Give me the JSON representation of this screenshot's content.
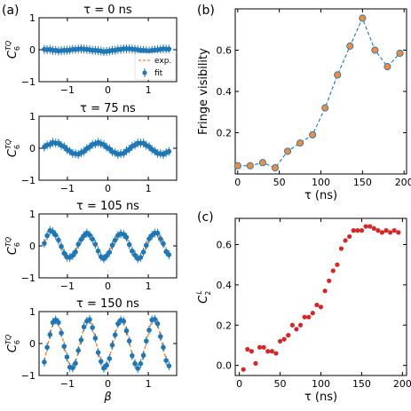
{
  "panel_labels": {
    "a": "(a)",
    "b": "(b)",
    "c": "(c)"
  },
  "colors": {
    "blue": "#1f77b4",
    "orange": "#ff7f0e",
    "orange_fill": "#f08c3a",
    "red": "#d62728"
  },
  "legend": {
    "fit": "exp.",
    "exp": "fit"
  },
  "chart_data": [
    {
      "type": "line",
      "panel": "a1",
      "title": "τ = 0 ns",
      "ylabel": "C_6^{TQ}",
      "xlim": [
        -1.7,
        1.7
      ],
      "ylim": [
        -1,
        1
      ],
      "xticks": [
        -1,
        0,
        1
      ],
      "yticks": [
        -1,
        0,
        1
      ],
      "series": [
        {
          "name": "exp.",
          "x": [
            -1.57,
            -1.5,
            -1.43,
            -1.36,
            -1.29,
            -1.22,
            -1.15,
            -1.08,
            -1.01,
            -0.94,
            -0.87,
            -0.8,
            -0.73,
            -0.66,
            -0.59,
            -0.52,
            -0.45,
            -0.38,
            -0.31,
            -0.24,
            -0.17,
            -0.1,
            -0.03,
            0.04,
            0.11,
            0.18,
            0.25,
            0.32,
            0.39,
            0.46,
            0.53,
            0.6,
            0.67,
            0.74,
            0.81,
            0.88,
            0.95,
            1.02,
            1.09,
            1.16,
            1.23,
            1.3,
            1.37,
            1.44,
            1.51
          ],
          "y": [
            0.01,
            0.0,
            0.0,
            -0.01,
            -0.02,
            -0.03,
            -0.03,
            -0.03,
            -0.02,
            -0.01,
            0.0,
            0.01,
            0.02,
            0.02,
            0.02,
            0.01,
            0.0,
            -0.01,
            -0.02,
            -0.03,
            -0.04,
            -0.05,
            -0.05,
            -0.04,
            -0.03,
            -0.02,
            0.0,
            0.01,
            0.02,
            0.03,
            0.03,
            0.02,
            0.01,
            0.0,
            -0.01,
            -0.02,
            -0.03,
            -0.03,
            -0.02,
            -0.01,
            0.0,
            0.01,
            0.02,
            0.02,
            0.02
          ]
        },
        {
          "name": "fit",
          "x": [
            -1.57,
            -1.5,
            -1.43,
            -1.36,
            -1.29,
            -1.22,
            -1.15,
            -1.08,
            -1.01,
            -0.94,
            -0.87,
            -0.8,
            -0.73,
            -0.66,
            -0.59,
            -0.52,
            -0.45,
            -0.38,
            -0.31,
            -0.24,
            -0.17,
            -0.1,
            -0.03,
            0.04,
            0.11,
            0.18,
            0.25,
            0.32,
            0.39,
            0.46,
            0.53,
            0.6,
            0.67,
            0.74,
            0.81,
            0.88,
            0.95,
            1.02,
            1.09,
            1.16,
            1.23,
            1.3,
            1.37,
            1.44,
            1.51
          ],
          "y": [
            0.01,
            0.0,
            0.01,
            -0.02,
            -0.02,
            -0.04,
            -0.03,
            -0.02,
            -0.02,
            -0.01,
            0.01,
            0.01,
            0.02,
            0.03,
            0.02,
            0.01,
            0.0,
            -0.02,
            -0.02,
            -0.03,
            -0.04,
            -0.06,
            -0.05,
            -0.04,
            -0.02,
            -0.02,
            0.01,
            0.01,
            0.03,
            0.03,
            0.03,
            0.02,
            0.01,
            0.0,
            -0.02,
            -0.02,
            -0.03,
            -0.04,
            -0.02,
            -0.01,
            0.0,
            0.01,
            0.03,
            0.02,
            0.02
          ]
        }
      ]
    },
    {
      "type": "line",
      "panel": "a2",
      "title": "τ = 75 ns",
      "ylabel": "C_6^{TQ}",
      "xlim": [
        -1.7,
        1.7
      ],
      "ylim": [
        -1,
        1
      ],
      "xticks": [
        -1,
        0,
        1
      ],
      "yticks": [
        -1,
        0,
        1
      ],
      "series": [
        {
          "name": "exp.",
          "x": [
            -1.57,
            -1.5,
            -1.43,
            -1.36,
            -1.29,
            -1.22,
            -1.15,
            -1.08,
            -1.01,
            -0.94,
            -0.87,
            -0.8,
            -0.73,
            -0.66,
            -0.59,
            -0.52,
            -0.45,
            -0.38,
            -0.31,
            -0.24,
            -0.17,
            -0.1,
            -0.03,
            0.04,
            0.11,
            0.18,
            0.25,
            0.32,
            0.39,
            0.46,
            0.53,
            0.6,
            0.67,
            0.74,
            0.81,
            0.88,
            0.95,
            1.02,
            1.09,
            1.16,
            1.23,
            1.3,
            1.37,
            1.44,
            1.51
          ],
          "y": [
            0.05,
            0.09,
            0.13,
            0.16,
            0.17,
            0.15,
            0.1,
            0.04,
            -0.03,
            -0.1,
            -0.15,
            -0.18,
            -0.18,
            -0.15,
            -0.09,
            -0.02,
            0.05,
            0.11,
            0.15,
            0.17,
            0.15,
            0.1,
            0.04,
            -0.03,
            -0.1,
            -0.15,
            -0.18,
            -0.18,
            -0.15,
            -0.09,
            -0.02,
            0.05,
            0.11,
            0.15,
            0.17,
            0.15,
            0.1,
            0.04,
            -0.03,
            -0.1,
            -0.15,
            -0.18,
            -0.18,
            -0.15,
            -0.09
          ]
        },
        {
          "name": "fit",
          "x": [
            -1.57,
            -1.5,
            -1.43,
            -1.36,
            -1.29,
            -1.22,
            -1.15,
            -1.08,
            -1.01,
            -0.94,
            -0.87,
            -0.8,
            -0.73,
            -0.66,
            -0.59,
            -0.52,
            -0.45,
            -0.38,
            -0.31,
            -0.24,
            -0.17,
            -0.1,
            -0.03,
            0.04,
            0.11,
            0.18,
            0.25,
            0.32,
            0.39,
            0.46,
            0.53,
            0.6,
            0.67,
            0.74,
            0.81,
            0.88,
            0.95,
            1.02,
            1.09,
            1.16,
            1.23,
            1.3,
            1.37,
            1.44,
            1.51
          ],
          "y": [
            0.04,
            0.1,
            0.12,
            0.18,
            0.16,
            0.16,
            0.09,
            0.05,
            -0.04,
            -0.09,
            -0.16,
            -0.17,
            -0.19,
            -0.14,
            -0.1,
            -0.01,
            0.04,
            0.12,
            0.14,
            0.18,
            0.14,
            0.11,
            0.03,
            -0.02,
            -0.11,
            -0.14,
            -0.19,
            -0.17,
            -0.16,
            -0.08,
            -0.03,
            0.06,
            0.1,
            0.16,
            0.16,
            0.16,
            0.09,
            0.05,
            -0.04,
            -0.09,
            -0.16,
            -0.17,
            -0.19,
            -0.14,
            -0.1
          ]
        }
      ]
    },
    {
      "type": "line",
      "panel": "a3",
      "title": "τ = 105 ns",
      "ylabel": "C_6^{TQ}",
      "xlim": [
        -1.7,
        1.7
      ],
      "ylim": [
        -1,
        1
      ],
      "xticks": [
        -1,
        0,
        1
      ],
      "yticks": [
        -1,
        0,
        1
      ],
      "series": [
        {
          "name": "exp.",
          "x": [
            -1.57,
            -1.5,
            -1.43,
            -1.36,
            -1.29,
            -1.22,
            -1.15,
            -1.08,
            -1.01,
            -0.94,
            -0.87,
            -0.8,
            -0.73,
            -0.66,
            -0.59,
            -0.52,
            -0.45,
            -0.38,
            -0.31,
            -0.24,
            -0.17,
            -0.1,
            -0.03,
            0.04,
            0.11,
            0.18,
            0.25,
            0.32,
            0.39,
            0.46,
            0.53,
            0.6,
            0.67,
            0.74,
            0.81,
            0.88,
            0.95,
            1.02,
            1.09,
            1.16,
            1.23,
            1.3,
            1.37,
            1.44,
            1.51
          ],
          "y": [
            0.1,
            0.3,
            0.42,
            0.45,
            0.36,
            0.2,
            0.0,
            -0.2,
            -0.34,
            -0.38,
            -0.32,
            -0.17,
            0.03,
            0.22,
            0.36,
            0.42,
            0.37,
            0.23,
            0.03,
            -0.18,
            -0.33,
            -0.38,
            -0.33,
            -0.19,
            0.01,
            0.2,
            0.35,
            0.42,
            0.38,
            0.25,
            0.06,
            -0.15,
            -0.31,
            -0.38,
            -0.34,
            -0.21,
            0.0,
            0.2,
            0.35,
            0.42,
            0.38,
            0.25,
            0.05,
            -0.15,
            -0.3
          ]
        },
        {
          "name": "fit",
          "x": [
            -1.57,
            -1.5,
            -1.43,
            -1.36,
            -1.29,
            -1.22,
            -1.15,
            -1.08,
            -1.01,
            -0.94,
            -0.87,
            -0.8,
            -0.73,
            -0.66,
            -0.59,
            -0.52,
            -0.45,
            -0.38,
            -0.31,
            -0.24,
            -0.17,
            -0.1,
            -0.03,
            0.04,
            0.11,
            0.18,
            0.25,
            0.32,
            0.39,
            0.46,
            0.53,
            0.6,
            0.67,
            0.74,
            0.81,
            0.88,
            0.95,
            1.02,
            1.09,
            1.16,
            1.23,
            1.3,
            1.37,
            1.44,
            1.51
          ],
          "y": [
            0.08,
            0.32,
            0.48,
            0.44,
            0.34,
            0.18,
            -0.02,
            -0.23,
            -0.35,
            -0.36,
            -0.3,
            -0.19,
            0.05,
            0.2,
            0.32,
            0.4,
            0.34,
            0.21,
            0.05,
            -0.16,
            -0.34,
            -0.4,
            -0.31,
            -0.2,
            0.02,
            0.18,
            0.33,
            0.38,
            0.36,
            0.27,
            0.04,
            -0.16,
            -0.29,
            -0.4,
            -0.36,
            -0.19,
            0.02,
            0.22,
            0.33,
            0.4,
            0.4,
            0.22,
            0.07,
            -0.18,
            -0.28
          ]
        }
      ]
    },
    {
      "type": "line",
      "panel": "a4",
      "title": "τ = 150 ns",
      "ylabel": "C_6^{TQ}",
      "xlabel": "β",
      "xlim": [
        -1.7,
        1.7
      ],
      "ylim": [
        -1,
        1
      ],
      "xticks": [
        -1,
        0,
        1
      ],
      "yticks": [
        -1,
        0,
        1
      ],
      "series": [
        {
          "name": "exp.",
          "x": [
            -1.57,
            -1.5,
            -1.43,
            -1.36,
            -1.29,
            -1.22,
            -1.15,
            -1.08,
            -1.01,
            -0.94,
            -0.87,
            -0.8,
            -0.73,
            -0.66,
            -0.59,
            -0.52,
            -0.45,
            -0.38,
            -0.31,
            -0.24,
            -0.17,
            -0.1,
            -0.03,
            0.04,
            0.11,
            0.18,
            0.25,
            0.32,
            0.39,
            0.46,
            0.53,
            0.6,
            0.67,
            0.74,
            0.81,
            0.88,
            0.95,
            1.02,
            1.09,
            1.16,
            1.23,
            1.3,
            1.37,
            1.44,
            1.51
          ],
          "y": [
            -0.55,
            -0.15,
            0.3,
            0.62,
            0.75,
            0.65,
            0.35,
            -0.05,
            -0.45,
            -0.72,
            -0.78,
            -0.6,
            -0.25,
            0.15,
            0.5,
            0.72,
            0.72,
            0.52,
            0.15,
            -0.25,
            -0.58,
            -0.75,
            -0.7,
            -0.45,
            -0.08,
            0.3,
            0.6,
            0.75,
            0.68,
            0.42,
            0.05,
            -0.35,
            -0.65,
            -0.76,
            -0.65,
            -0.35,
            0.05,
            0.45,
            0.72,
            0.78,
            0.6,
            0.25,
            -0.15,
            -0.5,
            -0.72
          ]
        },
        {
          "name": "fit",
          "x": [
            -1.57,
            -1.5,
            -1.43,
            -1.36,
            -1.29,
            -1.22,
            -1.15,
            -1.08,
            -1.01,
            -0.94,
            -0.87,
            -0.8,
            -0.73,
            -0.66,
            -0.59,
            -0.52,
            -0.45,
            -0.38,
            -0.31,
            -0.24,
            -0.17,
            -0.1,
            -0.03,
            0.04,
            0.11,
            0.18,
            0.25,
            0.32,
            0.39,
            0.46,
            0.53,
            0.6,
            0.67,
            0.74,
            0.81,
            0.88,
            0.95,
            1.02,
            1.09,
            1.16,
            1.23,
            1.3,
            1.37,
            1.44,
            1.51
          ],
          "y": [
            -0.58,
            -0.12,
            0.28,
            0.66,
            0.74,
            0.66,
            0.33,
            -0.09,
            -0.42,
            -0.74,
            -0.76,
            -0.62,
            -0.22,
            0.11,
            0.52,
            0.7,
            0.75,
            0.5,
            0.17,
            -0.28,
            -0.56,
            -0.77,
            -0.68,
            -0.47,
            -0.05,
            0.27,
            0.62,
            0.73,
            0.7,
            0.4,
            0.08,
            -0.38,
            -0.63,
            -0.78,
            -0.63,
            -0.37,
            0.08,
            0.42,
            0.74,
            0.76,
            0.62,
            0.22,
            -0.12,
            -0.53,
            -0.7
          ]
        }
      ]
    },
    {
      "type": "line",
      "panel": "b",
      "ylabel": "Fringe visibility",
      "xlabel": "τ (ns)",
      "xlim": [
        -3,
        203
      ],
      "ylim": [
        0,
        0.8
      ],
      "xticks": [
        0,
        50,
        100,
        150,
        200
      ],
      "yticks": [
        0.2,
        0.4,
        0.6
      ],
      "x": [
        0,
        15,
        30,
        45,
        60,
        75,
        90,
        105,
        120,
        135,
        150,
        165,
        180,
        195
      ],
      "y": [
        0.04,
        0.04,
        0.055,
        0.03,
        0.11,
        0.15,
        0.19,
        0.32,
        0.48,
        0.62,
        0.755,
        0.6,
        0.52,
        0.585
      ]
    },
    {
      "type": "scatter",
      "panel": "c",
      "ylabel": "C_2^L",
      "xlabel": "τ (ns)",
      "xlim": [
        -5,
        205
      ],
      "ylim": [
        -0.05,
        0.73
      ],
      "xticks": [
        0,
        50,
        100,
        150,
        200
      ],
      "yticks": [
        0.0,
        0.2,
        0.4,
        0.6
      ],
      "x": [
        5,
        10,
        15,
        20,
        25,
        30,
        35,
        40,
        45,
        50,
        55,
        60,
        65,
        70,
        75,
        80,
        85,
        90,
        95,
        100,
        105,
        110,
        115,
        120,
        125,
        130,
        135,
        140,
        145,
        150,
        155,
        160,
        165,
        170,
        175,
        180,
        185,
        190,
        195
      ],
      "y": [
        -0.02,
        0.08,
        0.07,
        0.01,
        0.09,
        0.09,
        0.07,
        0.07,
        0.06,
        0.12,
        0.13,
        0.15,
        0.2,
        0.18,
        0.2,
        0.24,
        0.24,
        0.26,
        0.3,
        0.29,
        0.37,
        0.42,
        0.47,
        0.5,
        0.58,
        0.62,
        0.64,
        0.67,
        0.67,
        0.67,
        0.69,
        0.69,
        0.68,
        0.67,
        0.66,
        0.67,
        0.66,
        0.67,
        0.66
      ]
    }
  ]
}
